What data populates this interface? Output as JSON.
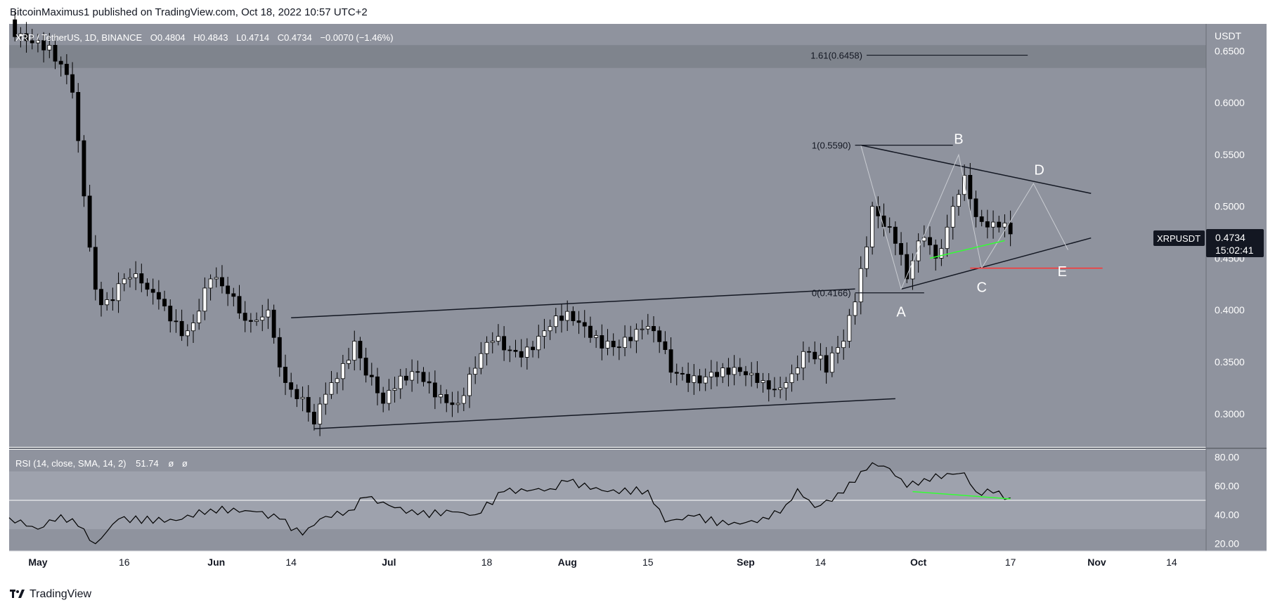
{
  "header": {
    "text": "BitcoinMaximus1 published on TradingView.com, Oct 18, 2022 10:57 UTC+2"
  },
  "footer": {
    "brand": "TradingView",
    "logo_icon": "tradingview-logo-icon"
  },
  "legend": {
    "symbol": "XRP / TetherUS, 1D, BINANCE",
    "open": "0.4804",
    "high": "0.4843",
    "low": "0.4714",
    "close": "0.4734",
    "change": "−0.0070 (−1.46%)"
  },
  "price_axis": {
    "unit": "USDT"
  },
  "price_tag": {
    "symbol": "XRPUSDT",
    "price": "0.4734",
    "countdown": "15:02:41"
  },
  "rsi": {
    "label": "RSI (14, close, SMA, 14, 2)",
    "value": "51.74",
    "extra1": "ø",
    "extra2": "ø"
  },
  "colors": {
    "panel_bg": "#8f939e",
    "rsi_band": "#9ea2ad",
    "candle_up": "#ffffff",
    "candle_down": "#000000",
    "rsi_line": "#000000",
    "divergence": "#33ff33",
    "support": "#ff3333",
    "resistance_zone": "#7d8189"
  },
  "chart_data": {
    "type": "candlestick",
    "title": "XRP / TetherUS, 1D, BINANCE",
    "x_range": [
      "2022-04-26",
      "2022-11-20"
    ],
    "ylim": [
      0.268,
      0.676
    ],
    "y_ticks": [
      "0.6500",
      "0.6000",
      "0.5500",
      "0.5000",
      "0.4500",
      "0.4000",
      "0.3500",
      "0.3000"
    ],
    "x_ticks": [
      {
        "label": "May",
        "date": "2022-05-01",
        "bold": true
      },
      {
        "label": "16",
        "date": "2022-05-16",
        "bold": false
      },
      {
        "label": "Jun",
        "date": "2022-06-01",
        "bold": true
      },
      {
        "label": "14",
        "date": "2022-06-14",
        "bold": false
      },
      {
        "label": "Jul",
        "date": "2022-07-01",
        "bold": true
      },
      {
        "label": "18",
        "date": "2022-07-18",
        "bold": false
      },
      {
        "label": "Aug",
        "date": "2022-08-01",
        "bold": true
      },
      {
        "label": "15",
        "date": "2022-08-15",
        "bold": false
      },
      {
        "label": "Sep",
        "date": "2022-09-01",
        "bold": true
      },
      {
        "label": "14",
        "date": "2022-09-14",
        "bold": false
      },
      {
        "label": "Oct",
        "date": "2022-10-01",
        "bold": true
      },
      {
        "label": "17",
        "date": "2022-10-17",
        "bold": false
      },
      {
        "label": "Nov",
        "date": "2022-11-01",
        "bold": true
      },
      {
        "label": "14",
        "date": "2022-11-14",
        "bold": false
      }
    ],
    "closes": [
      {
        "date": "2022-04-26",
        "close": 0.68
      },
      {
        "date": "2022-05-04",
        "close": 0.64
      },
      {
        "date": "2022-05-07",
        "close": 0.61
      },
      {
        "date": "2022-05-09",
        "close": 0.51
      },
      {
        "date": "2022-05-11",
        "close": 0.42
      },
      {
        "date": "2022-05-13",
        "close": 0.41
      },
      {
        "date": "2022-05-16",
        "close": 0.43
      },
      {
        "date": "2022-05-20",
        "close": 0.42
      },
      {
        "date": "2022-05-27",
        "close": 0.38
      },
      {
        "date": "2022-05-31",
        "close": 0.43
      },
      {
        "date": "2022-06-06",
        "close": 0.39
      },
      {
        "date": "2022-06-10",
        "close": 0.4
      },
      {
        "date": "2022-06-13",
        "close": 0.33
      },
      {
        "date": "2022-06-18",
        "close": 0.29
      },
      {
        "date": "2022-06-21",
        "close": 0.33
      },
      {
        "date": "2022-06-25",
        "close": 0.37
      },
      {
        "date": "2022-06-30",
        "close": 0.31
      },
      {
        "date": "2022-07-06",
        "close": 0.34
      },
      {
        "date": "2022-07-13",
        "close": 0.31
      },
      {
        "date": "2022-07-19",
        "close": 0.37
      },
      {
        "date": "2022-07-23",
        "close": 0.36
      },
      {
        "date": "2022-07-28",
        "close": 0.38
      },
      {
        "date": "2022-07-31",
        "close": 0.39
      },
      {
        "date": "2022-08-08",
        "close": 0.37
      },
      {
        "date": "2022-08-16",
        "close": 0.38
      },
      {
        "date": "2022-08-19",
        "close": 0.34
      },
      {
        "date": "2022-08-26",
        "close": 0.34
      },
      {
        "date": "2022-09-03",
        "close": 0.33
      },
      {
        "date": "2022-09-08",
        "close": 0.33
      },
      {
        "date": "2022-09-11",
        "close": 0.36
      },
      {
        "date": "2022-09-15",
        "close": 0.34
      },
      {
        "date": "2022-09-18",
        "close": 0.37
      },
      {
        "date": "2022-09-21",
        "close": 0.44
      },
      {
        "date": "2022-09-23",
        "close": 0.5
      },
      {
        "date": "2022-09-26",
        "close": 0.48
      },
      {
        "date": "2022-09-29",
        "close": 0.43
      },
      {
        "date": "2022-10-02",
        "close": 0.47
      },
      {
        "date": "2022-10-04",
        "close": 0.45
      },
      {
        "date": "2022-10-07",
        "close": 0.5
      },
      {
        "date": "2022-10-09",
        "close": 0.53
      },
      {
        "date": "2022-10-11",
        "close": 0.49
      },
      {
        "date": "2022-10-13",
        "close": 0.48
      },
      {
        "date": "2022-10-15",
        "close": 0.48
      },
      {
        "date": "2022-10-17",
        "close": 0.4734
      }
    ],
    "fib_levels": [
      {
        "label": "1.61(0.6458)",
        "price": 0.6458
      },
      {
        "label": "1(0.5590)",
        "price": 0.559
      },
      {
        "label": "0(0.4166)",
        "price": 0.4166
      }
    ],
    "resistance_zone": [
      0.6335,
      0.6555
    ],
    "wave_labels": [
      {
        "label": "A",
        "date": "2022-09-28",
        "price": 0.4166
      },
      {
        "label": "B",
        "date": "2022-10-08",
        "price": 0.551
      },
      {
        "label": "C",
        "date": "2022-10-12",
        "price": 0.441
      },
      {
        "label": "D",
        "date": "2022-10-22",
        "price": 0.521
      },
      {
        "label": "E",
        "date": "2022-10-26",
        "price": 0.453
      }
    ],
    "trendlines": [
      {
        "name": "channel-upper",
        "from": [
          "2022-06-14",
          0.3925
        ],
        "to": [
          "2022-09-20",
          0.4203
        ]
      },
      {
        "name": "channel-lower",
        "from": [
          "2022-06-18",
          0.2855
        ],
        "to": [
          "2022-09-27",
          0.3145
        ]
      },
      {
        "name": "triangle-upper",
        "from": [
          "2022-09-21",
          0.559
        ],
        "to": [
          "2022-10-31",
          0.5125
        ]
      },
      {
        "name": "triangle-lower",
        "from": [
          "2022-09-28",
          0.4202
        ],
        "to": [
          "2022-10-31",
          0.4695
        ]
      }
    ],
    "support_line": {
      "from": "2022-10-10",
      "to": "2022-11-02",
      "price": 0.4404
    },
    "rsi": {
      "levels": [
        70,
        50,
        30
      ],
      "y_ticks": [
        "80.00",
        "60.00",
        "40.00",
        "20.00"
      ],
      "ylim": [
        15,
        85
      ],
      "points": [
        {
          "date": "2022-04-26",
          "value": 38
        },
        {
          "date": "2022-05-01",
          "value": 30
        },
        {
          "date": "2022-05-05",
          "value": 40
        },
        {
          "date": "2022-05-08",
          "value": 32
        },
        {
          "date": "2022-05-11",
          "value": 20
        },
        {
          "date": "2022-05-15",
          "value": 37
        },
        {
          "date": "2022-05-25",
          "value": 36
        },
        {
          "date": "2022-05-31",
          "value": 44
        },
        {
          "date": "2022-06-08",
          "value": 42
        },
        {
          "date": "2022-06-12",
          "value": 37
        },
        {
          "date": "2022-06-16",
          "value": 26
        },
        {
          "date": "2022-06-19",
          "value": 37
        },
        {
          "date": "2022-06-24",
          "value": 43
        },
        {
          "date": "2022-06-27",
          "value": 52
        },
        {
          "date": "2022-07-06",
          "value": 40
        },
        {
          "date": "2022-07-12",
          "value": 42
        },
        {
          "date": "2022-07-16",
          "value": 40
        },
        {
          "date": "2022-07-21",
          "value": 56
        },
        {
          "date": "2022-07-29",
          "value": 58
        },
        {
          "date": "2022-08-01",
          "value": 63
        },
        {
          "date": "2022-08-08",
          "value": 56
        },
        {
          "date": "2022-08-15",
          "value": 57
        },
        {
          "date": "2022-08-18",
          "value": 35
        },
        {
          "date": "2022-08-23",
          "value": 39
        },
        {
          "date": "2022-08-29",
          "value": 33
        },
        {
          "date": "2022-09-05",
          "value": 37
        },
        {
          "date": "2022-09-08",
          "value": 47
        },
        {
          "date": "2022-09-10",
          "value": 58
        },
        {
          "date": "2022-09-13",
          "value": 45
        },
        {
          "date": "2022-09-18",
          "value": 55
        },
        {
          "date": "2022-09-21",
          "value": 70
        },
        {
          "date": "2022-09-23",
          "value": 76
        },
        {
          "date": "2022-09-26",
          "value": 72
        },
        {
          "date": "2022-09-29",
          "value": 59
        },
        {
          "date": "2022-10-02",
          "value": 65
        },
        {
          "date": "2022-10-07",
          "value": 68
        },
        {
          "date": "2022-10-09",
          "value": 69
        },
        {
          "date": "2022-10-11",
          "value": 56
        },
        {
          "date": "2022-10-14",
          "value": 55
        },
        {
          "date": "2022-10-17",
          "value": 51.74
        }
      ],
      "divergence_line": {
        "from": [
          "2022-09-30",
          56
        ],
        "to": [
          "2022-10-17",
          51
        ]
      }
    }
  }
}
